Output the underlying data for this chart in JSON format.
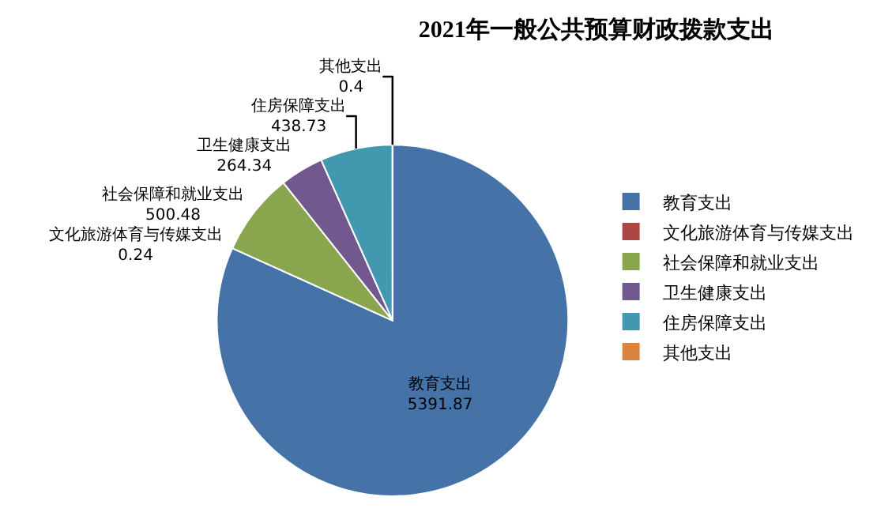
{
  "chart_data": {
    "type": "pie",
    "title": "2021年一般公共预算财政拨款支出",
    "categories": [
      "教育支出",
      "文化旅游体育与传媒支出",
      "社会保障和就业支出",
      "卫生健康支出",
      "住房保障支出",
      "其他支出"
    ],
    "values": [
      5391.87,
      0.24,
      500.48,
      264.34,
      438.73,
      0.4
    ],
    "colors": [
      "#4572a7",
      "#aa4643",
      "#89a54e",
      "#71588f",
      "#4198af",
      "#db843d"
    ],
    "data_labels": true,
    "legend": "right"
  }
}
